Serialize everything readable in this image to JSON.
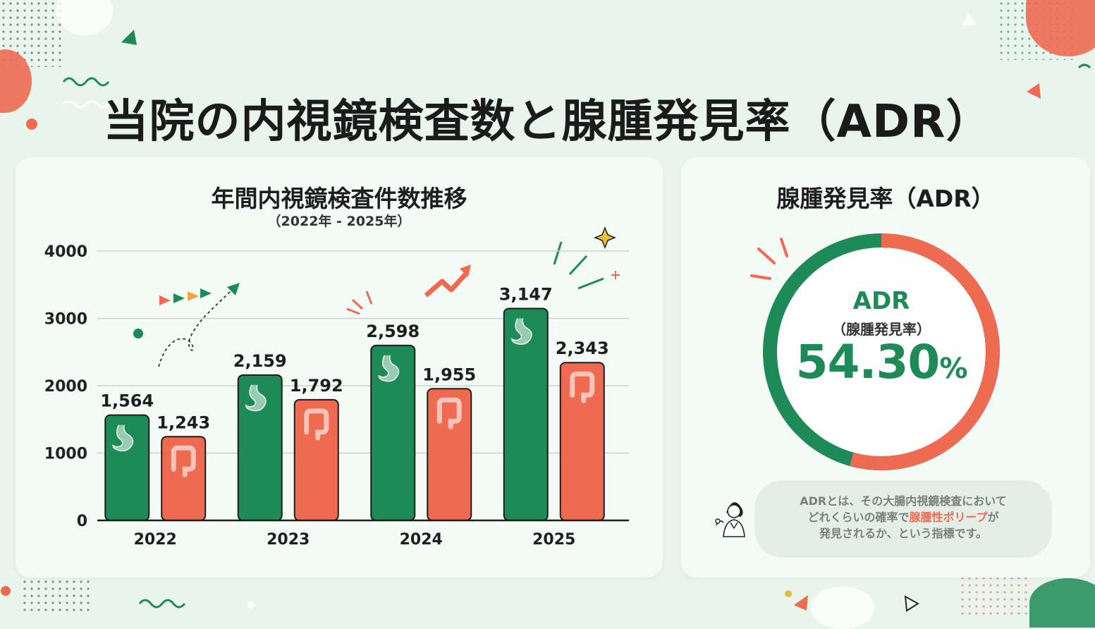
{
  "header": {
    "title": "当院の内視鏡検査数と腺腫発見率（ADR）"
  },
  "colors": {
    "green": "#1e8a57",
    "red": "#ee6b52",
    "background": "#e9f5ec"
  },
  "chart_data": {
    "type": "bar",
    "title": "年間内視鏡検査件数推移",
    "subtitle": "（2022年 - 2025年）",
    "categories": [
      "2022",
      "2023",
      "2024",
      "2025"
    ],
    "series": [
      {
        "values": [
          1564,
          2159,
          2598,
          3147
        ],
        "labels": [
          "1,564",
          "2,159",
          "2,598",
          "3,147"
        ],
        "color": "#1e8a57",
        "icon": "stomach-icon"
      },
      {
        "values": [
          1243,
          1792,
          1955,
          2343
        ],
        "labels": [
          "1,243",
          "1,792",
          "1,955",
          "2,343"
        ],
        "color": "#ee6b52",
        "icon": "colon-icon"
      }
    ],
    "yticks": [
      "0",
      "1000",
      "2000",
      "3000",
      "4000"
    ],
    "ylim": [
      0,
      4000
    ],
    "grid": true
  },
  "adr": {
    "title": "腺腫発見率（ADR）",
    "label": "ADR",
    "sublabel": "（腺腫発見率）",
    "value_number": "54.30",
    "value_unit": "%",
    "percent": 54.3,
    "note": {
      "line1": "ADRとは、その大腸内視鏡検査において",
      "line2_before": "どれくらいの確率で",
      "line2_highlight": "腺腫性ポリープ",
      "line2_after": "が",
      "line3": "発見されるか、という指標です。"
    }
  }
}
